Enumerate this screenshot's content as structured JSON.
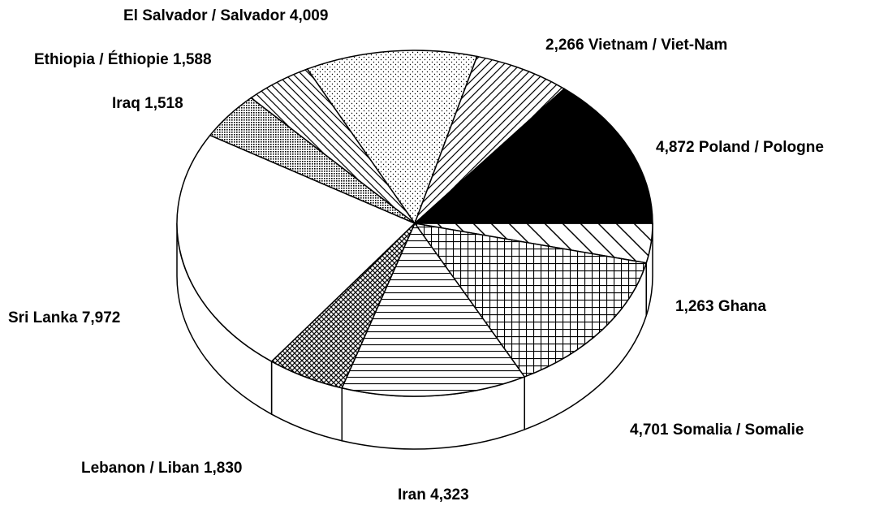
{
  "chart_data": {
    "type": "pie",
    "categories": [
      "Ghana",
      "Somalia / Somalie",
      "Iran",
      "Lebanon / Liban",
      "Sri Lanka",
      "Iraq",
      "Ethiopia / Éthiopie",
      "El Salvador / Salvador",
      "Vietnam / Viet-Nam",
      "Poland / Pologne"
    ],
    "values": [
      1263,
      4701,
      4323,
      1830,
      7972,
      1518,
      1588,
      4009,
      2266,
      4872
    ],
    "value_labels": [
      "1,263",
      "4,701",
      "4,323",
      "1,830",
      "7,972",
      "1,518",
      "1,588",
      "4,009",
      "2,266",
      "4,872"
    ]
  }
}
